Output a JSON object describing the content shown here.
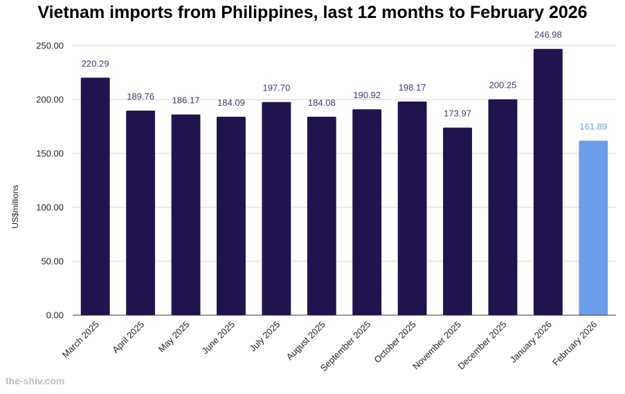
{
  "watermark": "the-shiv.com",
  "colors": {
    "bar": "#21134d",
    "highlight": "#6d9eeb",
    "grid": "#d9d9d9",
    "axis": "#333333",
    "label": "#3c3c6e",
    "highlight_label": "#6d9eeb"
  },
  "chart_data": {
    "type": "bar",
    "title": "Vietnam imports from Philippines, last 12 months to February 2026",
    "xlabel": "",
    "ylabel": "US$millions",
    "categories": [
      "March 2025",
      "April 2025",
      "May 2025",
      "June 2025",
      "July 2025",
      "August 2025",
      "September 2025",
      "October 2025",
      "November 2025",
      "December 2025",
      "January 2026",
      "February 2026"
    ],
    "values": [
      220.29,
      189.76,
      186.17,
      184.09,
      197.7,
      184.08,
      190.92,
      198.17,
      173.97,
      200.25,
      246.98,
      161.89
    ],
    "value_labels": [
      "220.29",
      "189.76",
      "186.17",
      "184.09",
      "197.70",
      "184.08",
      "190.92",
      "198.17",
      "173.97",
      "200.25",
      "246.98",
      "161.89"
    ],
    "ylim": [
      0,
      250
    ],
    "yticks": [
      "0.00",
      "50.00",
      "100.00",
      "150.00",
      "200.00",
      "250.00"
    ],
    "highlight_index": 11,
    "grid": true
  }
}
